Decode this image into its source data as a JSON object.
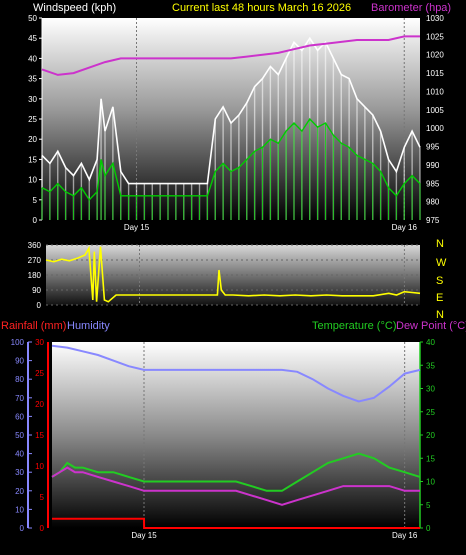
{
  "header": {
    "wind_label": "Windspeed (kph)",
    "title": "Current last 48 hours March 16 2026",
    "baro_label": "Barometer (hpa)"
  },
  "footer_labels": {
    "rain_label": "Rainfall (mm)",
    "humidity_label": "Humidity",
    "temp_label": "Temperature (°C)",
    "dew_label": "Dew Point (°C)"
  },
  "compass": [
    "N",
    "W",
    "S",
    "E",
    "N"
  ],
  "colors": {
    "wind_gust": "#ffffff",
    "wind_avg": "#00cc00",
    "barometer": "#cc33cc",
    "direction": "#ffff00",
    "rainfall": "#ff0000",
    "humidity": "#8888ff",
    "temperature": "#22cc22",
    "dewpoint": "#cc33cc"
  },
  "chart_data": [
    {
      "type": "line",
      "x_unit": "hours",
      "x_range": [
        0,
        48
      ],
      "x_ticks": [
        {
          "x": 12,
          "label": "Day 15"
        },
        {
          "x": 46,
          "label": "Day 16"
        }
      ],
      "y_left": {
        "label": "Windspeed (kph)",
        "ylim": [
          0,
          50
        ],
        "ticks": [
          0,
          5,
          10,
          15,
          20,
          25,
          30,
          35,
          40,
          45,
          50
        ]
      },
      "y_right": {
        "label": "Barometer (hpa)",
        "ylim": [
          975,
          1030
        ],
        "ticks": [
          975,
          980,
          985,
          990,
          995,
          1000,
          1005,
          1010,
          1015,
          1020,
          1025,
          1030
        ]
      },
      "series": [
        {
          "name": "Windspeed (kph)",
          "style": "gust",
          "axis": "left",
          "x": [
            0,
            1,
            2,
            3,
            4,
            5,
            6,
            7,
            7.5,
            8,
            9,
            10,
            11,
            12,
            13,
            14,
            15,
            16,
            17,
            18,
            19,
            20,
            21,
            22,
            23,
            24,
            25,
            26,
            27,
            28,
            29,
            30,
            31,
            32,
            33,
            34,
            35,
            36,
            37,
            38,
            39,
            40,
            41,
            42,
            43,
            44,
            45,
            46,
            47,
            48
          ],
          "y": [
            16,
            14,
            17,
            13,
            11,
            14,
            10,
            15,
            30,
            22,
            28,
            12,
            9,
            9,
            9,
            9,
            9,
            9,
            9,
            9,
            9,
            9,
            9,
            25,
            28,
            24,
            26,
            29,
            33,
            35,
            38,
            36,
            40,
            44,
            42,
            45,
            42,
            44,
            40,
            36,
            35,
            30,
            28,
            26,
            22,
            15,
            12,
            18,
            22,
            18
          ]
        },
        {
          "name": "Windspeed avg",
          "style": "avg",
          "axis": "left",
          "x": [
            0,
            1,
            2,
            3,
            4,
            5,
            6,
            7,
            7.5,
            8,
            9,
            10,
            11,
            12,
            13,
            14,
            15,
            16,
            17,
            18,
            19,
            20,
            21,
            22,
            23,
            24,
            25,
            26,
            27,
            28,
            29,
            30,
            31,
            32,
            33,
            34,
            35,
            36,
            37,
            38,
            39,
            40,
            41,
            42,
            43,
            44,
            45,
            46,
            47,
            48
          ],
          "y": [
            8,
            7,
            9,
            7,
            6,
            8,
            5,
            7,
            15,
            11,
            14,
            6,
            6,
            6,
            6,
            6,
            6,
            6,
            6,
            6,
            6,
            6,
            6,
            12,
            14,
            12,
            13,
            15,
            17,
            18,
            20,
            19,
            22,
            24,
            22,
            25,
            23,
            24,
            21,
            19,
            18,
            16,
            15,
            14,
            12,
            8,
            6,
            9,
            11,
            9
          ]
        },
        {
          "name": "Barometer (hpa)",
          "axis": "right",
          "x": [
            0,
            2,
            4,
            6,
            8,
            10,
            12,
            14,
            16,
            18,
            20,
            22,
            24,
            26,
            28,
            30,
            32,
            34,
            36,
            38,
            40,
            42,
            44,
            46,
            48
          ],
          "y": [
            1016,
            1014.5,
            1015,
            1016.5,
            1018,
            1019,
            1019,
            1019,
            1019,
            1019,
            1019,
            1019,
            1019,
            1019.5,
            1020,
            1020.5,
            1021.5,
            1022.5,
            1023,
            1023.5,
            1024,
            1024,
            1024,
            1025,
            1025
          ]
        }
      ]
    },
    {
      "type": "line",
      "x_range": [
        0,
        48
      ],
      "y": {
        "ylim": [
          0,
          360
        ],
        "ticks": [
          0,
          90,
          180,
          270,
          360
        ]
      },
      "series": [
        {
          "name": "Wind direction",
          "axis": "left",
          "x": [
            0,
            1,
            2,
            3,
            4,
            5,
            5.5,
            6,
            6.2,
            6.5,
            7,
            7.5,
            8,
            9,
            10,
            11,
            12,
            14,
            16,
            18,
            20,
            22,
            22.2,
            22.5,
            23,
            24,
            26,
            28,
            30,
            32,
            34,
            36,
            38,
            40,
            42,
            44,
            45,
            46,
            47,
            48
          ],
          "y": [
            270,
            260,
            275,
            265,
            280,
            300,
            340,
            30,
            320,
            20,
            350,
            30,
            20,
            60,
            60,
            60,
            60,
            60,
            60,
            60,
            60,
            60,
            210,
            90,
            60,
            60,
            55,
            60,
            55,
            60,
            55,
            60,
            55,
            55,
            55,
            70,
            60,
            80,
            75,
            70
          ]
        }
      ]
    },
    {
      "type": "line",
      "x_range": [
        0,
        48
      ],
      "y_left_outer": {
        "label": "Humidity",
        "ylim": [
          0,
          100
        ],
        "ticks": [
          0,
          10,
          20,
          30,
          40,
          50,
          60,
          70,
          80,
          90,
          100
        ]
      },
      "y_left_inner": {
        "label": "Rainfall (mm)",
        "ylim": [
          0,
          30
        ],
        "ticks": [
          0,
          5,
          10,
          15,
          20,
          25,
          30
        ]
      },
      "y_right": {
        "label": "Temperature (°C)",
        "ylim": [
          0,
          40
        ],
        "ticks": [
          0,
          5,
          10,
          15,
          20,
          25,
          30,
          35,
          40
        ]
      },
      "series": [
        {
          "name": "Humidity",
          "axis": "left_outer",
          "x": [
            0,
            2,
            4,
            6,
            8,
            10,
            12,
            14,
            16,
            18,
            20,
            22,
            24,
            26,
            28,
            30,
            32,
            34,
            36,
            38,
            40,
            42,
            44,
            46,
            48
          ],
          "y": [
            98,
            97,
            95,
            93,
            90,
            87,
            85,
            85,
            85,
            85,
            85,
            85,
            85,
            85,
            85,
            85,
            84,
            80,
            75,
            71,
            68,
            70,
            76,
            83,
            85
          ]
        },
        {
          "name": "Temperature (°C)",
          "axis": "right",
          "x": [
            0,
            1,
            2,
            3,
            4,
            6,
            8,
            10,
            12,
            14,
            16,
            18,
            20,
            22,
            24,
            26,
            28,
            30,
            32,
            34,
            36,
            38,
            40,
            42,
            44,
            46,
            48
          ],
          "y": [
            11,
            12,
            14,
            13,
            13,
            12,
            12,
            11,
            10,
            10,
            10,
            10,
            10,
            10,
            10,
            9,
            8,
            8,
            10,
            12,
            14,
            15,
            16,
            15,
            13,
            12,
            11
          ]
        },
        {
          "name": "Dew Point (°C)",
          "axis": "right",
          "x": [
            0,
            1,
            2,
            3,
            4,
            6,
            8,
            10,
            12,
            14,
            16,
            18,
            20,
            22,
            24,
            26,
            28,
            30,
            32,
            34,
            36,
            38,
            40,
            42,
            44,
            46,
            48
          ],
          "y": [
            11,
            12,
            13,
            12,
            12,
            11,
            10,
            9,
            8,
            8,
            8,
            8,
            8,
            8,
            8,
            7,
            6,
            5,
            6,
            7,
            8,
            9,
            9,
            9,
            9,
            8,
            8
          ]
        },
        {
          "name": "Rainfall (mm)",
          "axis": "left_inner",
          "x": [
            0,
            12,
            12.01,
            48
          ],
          "y": [
            1.5,
            1.5,
            0,
            0
          ]
        }
      ]
    }
  ]
}
